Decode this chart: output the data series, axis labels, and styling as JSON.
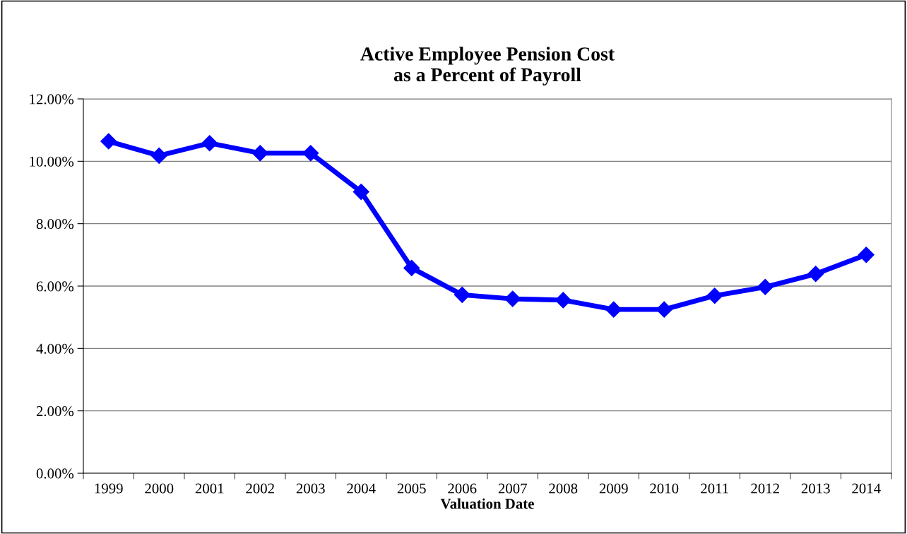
{
  "chart_data": {
    "type": "line",
    "title": "Active Employee Pension Cost\nas a Percent of Payroll",
    "xlabel": "Valuation Date",
    "categories": [
      "1999",
      "2000",
      "2001",
      "2002",
      "2003",
      "2004",
      "2005",
      "2006",
      "2007",
      "2008",
      "2009",
      "2010",
      "2011",
      "2012",
      "2013",
      "2014"
    ],
    "series": [
      {
        "color": "#0000ff",
        "values": [
          10.64,
          10.18,
          10.58,
          10.26,
          10.26,
          9.02,
          6.58,
          5.72,
          5.59,
          5.55,
          5.25,
          5.25,
          5.69,
          5.97,
          6.39,
          7.0
        ]
      }
    ],
    "ylim": [
      0,
      12
    ],
    "yticks": [
      {
        "value": 0,
        "label": "0.00%"
      },
      {
        "value": 2,
        "label": "2.00%"
      },
      {
        "value": 4,
        "label": "4.00%"
      },
      {
        "value": 6,
        "label": "6.00%"
      },
      {
        "value": 8,
        "label": "8.00%"
      },
      {
        "value": 10,
        "label": "10.00%"
      },
      {
        "value": 12,
        "label": "12.00%"
      }
    ],
    "grid": "y",
    "marker": "diamond",
    "line_style": "solid",
    "legend": false
  }
}
